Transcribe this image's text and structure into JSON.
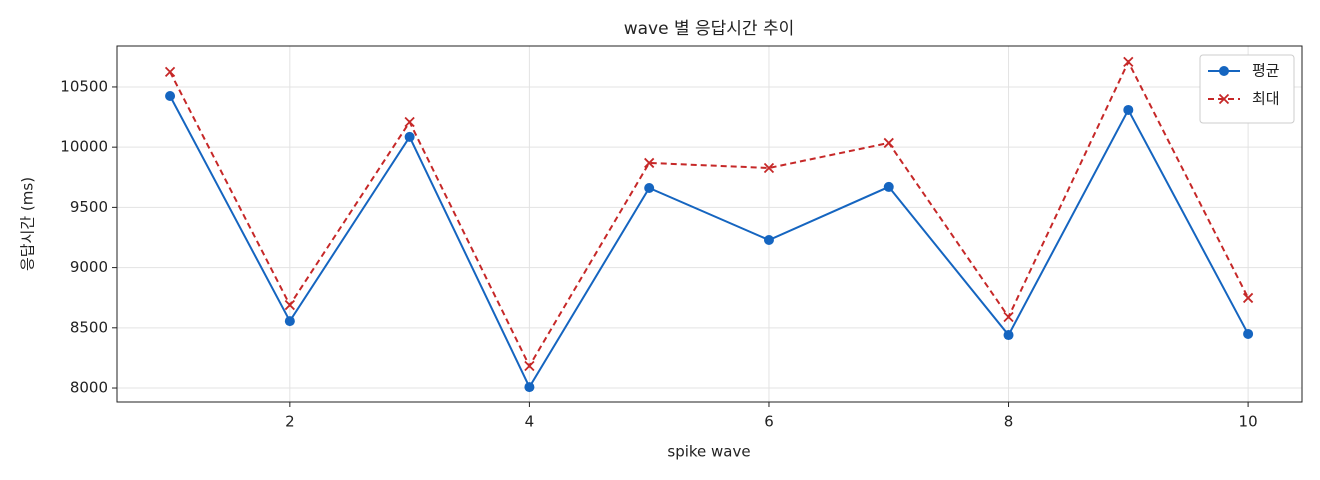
{
  "chart_data": {
    "type": "line",
    "title": "wave 별 응답시간 추이",
    "xlabel": "spike wave",
    "ylabel": "응답시간 (ms)",
    "x": [
      1,
      2,
      3,
      4,
      5,
      6,
      7,
      8,
      9,
      10
    ],
    "series": [
      {
        "name": "평균",
        "color": "#1565c0",
        "linestyle": "solid",
        "marker": "circle",
        "values": [
          10425,
          8556,
          10085,
          8008,
          9661,
          9229,
          9670,
          8440,
          10309,
          8449
        ]
      },
      {
        "name": "최대",
        "color": "#c62828",
        "linestyle": "dashed",
        "marker": "x",
        "values": [
          10625,
          8689,
          10209,
          8183,
          9869,
          9827,
          10035,
          8590,
          10708,
          8748
        ]
      }
    ],
    "xlim": [
      0.557,
      10.45
    ],
    "ylim": [
      7884,
      10840
    ],
    "xticks": [
      2,
      4,
      6,
      8,
      10
    ],
    "yticks": [
      8000,
      8500,
      9000,
      9500,
      10000,
      10500
    ],
    "grid": true,
    "legend": "upper right"
  }
}
